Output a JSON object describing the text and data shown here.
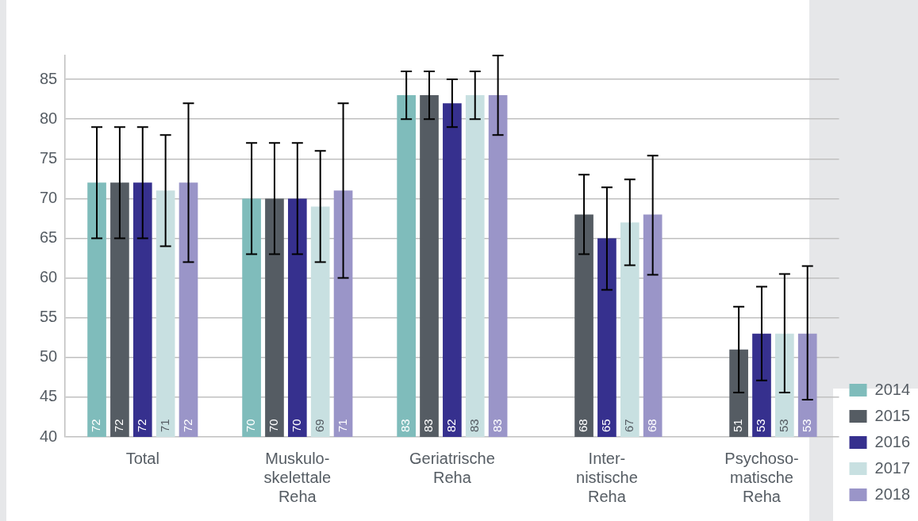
{
  "chart_data": {
    "type": "bar",
    "categories": [
      "Total",
      "Muskulo-\nskelettale\nReha",
      "Geriatrische\nReha",
      "Inter-\nnistische\nReha",
      "Psychoso-\nmatische\nReha"
    ],
    "series": [
      {
        "name": "2014",
        "color": "#7fbcbb",
        "values": [
          72,
          70,
          83,
          null,
          null
        ],
        "errors": [
          [
            65,
            79
          ],
          [
            63,
            77
          ],
          [
            80,
            86
          ],
          null,
          null
        ]
      },
      {
        "name": "2015",
        "color": "#555c63",
        "values": [
          72,
          70,
          83,
          68,
          51
        ],
        "errors": [
          [
            65,
            79
          ],
          [
            63,
            77
          ],
          [
            80,
            86
          ],
          [
            63,
            73
          ],
          [
            45.6,
            56.4
          ]
        ]
      },
      {
        "name": "2016",
        "color": "#36308e",
        "values": [
          72,
          70,
          82,
          65,
          53
        ],
        "errors": [
          [
            65,
            79
          ],
          [
            63,
            77
          ],
          [
            79,
            85
          ],
          [
            58.5,
            71.4
          ],
          [
            47.1,
            58.9
          ]
        ]
      },
      {
        "name": "2017",
        "color": "#c8e0e1",
        "values": [
          71,
          69,
          83,
          67,
          53
        ],
        "errors": [
          [
            64,
            78
          ],
          [
            62,
            76
          ],
          [
            80,
            86
          ],
          [
            61.6,
            72.4
          ],
          [
            45.6,
            60.5
          ]
        ]
      },
      {
        "name": "2018",
        "color": "#9a95c8",
        "values": [
          72,
          71,
          83,
          68,
          53
        ],
        "errors": [
          [
            62,
            82
          ],
          [
            60,
            82
          ],
          [
            78,
            88
          ],
          [
            60.4,
            75.4
          ],
          [
            44.7,
            61.5
          ]
        ]
      }
    ],
    "ylim": [
      40,
      88
    ],
    "yticks": [
      40,
      45,
      50,
      55,
      60,
      65,
      70,
      75,
      80,
      85
    ],
    "grid": "y",
    "legend": "bottom right",
    "data_labels": true
  }
}
